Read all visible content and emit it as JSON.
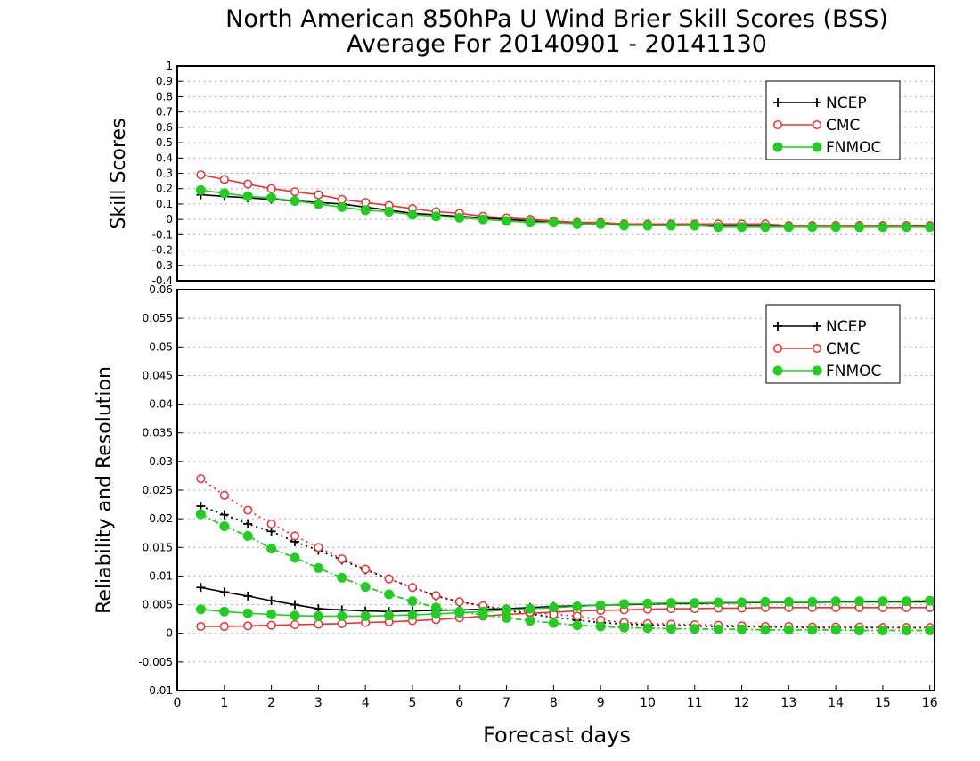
{
  "chart_data": [
    {
      "type": "line",
      "title": "North American 850hPa U Wind Brier Skill Scores (BSS)",
      "subtitle": "Average For 20140901 - 20141130",
      "xlabel": "",
      "ylabel": "Skill Scores",
      "xlim": [
        0,
        16.1
      ],
      "ylim": [
        -0.4,
        1
      ],
      "yticks": [
        "-0.4",
        "-0.3",
        "-0.2",
        "-0.1",
        "0",
        "0.1",
        "0.2",
        "0.3",
        "0.4",
        "0.5",
        "0.6",
        "0.7",
        "0.8",
        "0.9",
        "1"
      ],
      "grid": true,
      "legend": "top-right",
      "x": [
        0.5,
        1,
        1.5,
        2,
        2.5,
        3,
        3.5,
        4,
        4.5,
        5,
        5.5,
        6,
        6.5,
        7,
        7.5,
        8,
        8.5,
        9,
        9.5,
        10,
        10.5,
        11,
        11.5,
        12,
        12.5,
        13,
        13.5,
        14,
        14.5,
        15,
        15.5,
        16
      ],
      "series": [
        {
          "name": "NCEP",
          "color": "#000000",
          "marker": "plus",
          "dash": "solid",
          "values": [
            0.16,
            0.15,
            0.14,
            0.13,
            0.12,
            0.11,
            0.1,
            0.08,
            0.06,
            0.04,
            0.03,
            0.02,
            0.01,
            0.0,
            -0.01,
            -0.02,
            -0.02,
            -0.03,
            -0.03,
            -0.04,
            -0.04,
            -0.04,
            -0.04,
            -0.04,
            -0.04,
            -0.04,
            -0.04,
            -0.04,
            -0.04,
            -0.04,
            -0.04,
            -0.05
          ]
        },
        {
          "name": "CMC",
          "color": "#ee3333",
          "marker": "open-circle",
          "dash": "solid",
          "values": [
            0.29,
            0.26,
            0.23,
            0.2,
            0.18,
            0.16,
            0.13,
            0.11,
            0.09,
            0.07,
            0.05,
            0.04,
            0.02,
            0.01,
            0.0,
            -0.01,
            -0.02,
            -0.02,
            -0.03,
            -0.03,
            -0.03,
            -0.03,
            -0.03,
            -0.03,
            -0.03,
            -0.04,
            -0.04,
            -0.04,
            -0.04,
            -0.04,
            -0.04,
            -0.04
          ]
        },
        {
          "name": "FNMOC",
          "color": "#22cc22",
          "marker": "filled-circle",
          "dash": "solid",
          "values": [
            0.19,
            0.17,
            0.15,
            0.14,
            0.12,
            0.1,
            0.08,
            0.06,
            0.05,
            0.03,
            0.02,
            0.01,
            0.0,
            -0.01,
            -0.02,
            -0.02,
            -0.03,
            -0.03,
            -0.04,
            -0.04,
            -0.04,
            -0.04,
            -0.05,
            -0.05,
            -0.05,
            -0.05,
            -0.05,
            -0.05,
            -0.05,
            -0.05,
            -0.05,
            -0.05
          ]
        }
      ]
    },
    {
      "type": "line",
      "title": "",
      "xlabel": "Forecast days",
      "ylabel": "Reliability and Resolution",
      "xlim": [
        0,
        16.1
      ],
      "ylim": [
        -0.01,
        0.06
      ],
      "xticks": [
        "0",
        "1",
        "2",
        "3",
        "4",
        "5",
        "6",
        "7",
        "8",
        "9",
        "10",
        "11",
        "12",
        "13",
        "14",
        "15",
        "16"
      ],
      "yticks": [
        "-0.01",
        "-0.005",
        "0",
        "0.005",
        "0.01",
        "0.015",
        "0.02",
        "0.025",
        "0.03",
        "0.035",
        "0.04",
        "0.045",
        "0.05",
        "0.055",
        "0.06"
      ],
      "grid": true,
      "legend": "top-right",
      "x": [
        0.5,
        1,
        1.5,
        2,
        2.5,
        3,
        3.5,
        4,
        4.5,
        5,
        5.5,
        6,
        6.5,
        7,
        7.5,
        8,
        8.5,
        9,
        9.5,
        10,
        10.5,
        11,
        11.5,
        12,
        12.5,
        13,
        13.5,
        14,
        14.5,
        15,
        15.5,
        16
      ],
      "series": [
        {
          "name": "NCEP",
          "color": "#000000",
          "marker": "plus",
          "dash": "solid",
          "values": [
            0.008,
            0.0072,
            0.0065,
            0.0057,
            0.005,
            0.0043,
            0.0041,
            0.0039,
            0.0038,
            0.0039,
            0.004,
            0.0041,
            0.0042,
            0.0043,
            0.0045,
            0.0047,
            0.0048,
            0.0049,
            0.005,
            0.0051,
            0.0052,
            0.0052,
            0.0053,
            0.0053,
            0.0054,
            0.0054,
            0.0054,
            0.0055,
            0.0055,
            0.0055,
            0.0055,
            0.0055
          ]
        },
        {
          "legend": false,
          "color": "#000000",
          "marker": "plus",
          "dash": "dotted",
          "values": [
            0.0222,
            0.0207,
            0.0191,
            0.0178,
            0.016,
            0.0145,
            0.0128,
            0.0111,
            0.0095,
            0.008,
            0.0065,
            0.0055,
            0.0048,
            0.004,
            0.0034,
            0.0028,
            0.0023,
            0.0019,
            0.0016,
            0.0015,
            0.0014,
            0.0013,
            0.0012,
            0.0012,
            0.0011,
            0.0011,
            0.001,
            0.001,
            0.001,
            0.001,
            0.001,
            0.001
          ]
        },
        {
          "name": "CMC",
          "color": "#ee3333",
          "marker": "open-circle",
          "dash": "solid",
          "values": [
            0.0012,
            0.0012,
            0.0013,
            0.0014,
            0.0015,
            0.0016,
            0.0017,
            0.0019,
            0.002,
            0.0022,
            0.0024,
            0.0027,
            0.003,
            0.0033,
            0.0035,
            0.0037,
            0.0039,
            0.004,
            0.0041,
            0.0042,
            0.0043,
            0.0043,
            0.0044,
            0.0044,
            0.0045,
            0.0045,
            0.0045,
            0.0045,
            0.0045,
            0.0045,
            0.0045,
            0.0045
          ]
        },
        {
          "legend": false,
          "color": "#ee3333",
          "marker": "open-circle",
          "dash": "dotted",
          "values": [
            0.027,
            0.0241,
            0.0215,
            0.0191,
            0.017,
            0.015,
            0.013,
            0.0112,
            0.0095,
            0.008,
            0.0066,
            0.0055,
            0.0048,
            0.0042,
            0.0037,
            0.0033,
            0.003,
            0.0023,
            0.0019,
            0.0017,
            0.0016,
            0.0015,
            0.0014,
            0.0013,
            0.0012,
            0.0012,
            0.0011,
            0.0011,
            0.0011,
            0.001,
            0.001,
            0.001
          ]
        },
        {
          "name": "FNMOC",
          "color": "#22cc22",
          "marker": "filled-circle",
          "dash": "solid",
          "values": [
            0.0042,
            0.0038,
            0.0035,
            0.0033,
            0.0031,
            0.003,
            0.003,
            0.003,
            0.0031,
            0.0032,
            0.0034,
            0.0036,
            0.0038,
            0.0041,
            0.0043,
            0.0045,
            0.0047,
            0.0049,
            0.0051,
            0.0052,
            0.0053,
            0.0053,
            0.0054,
            0.0054,
            0.0055,
            0.0055,
            0.0055,
            0.0056,
            0.0056,
            0.0056,
            0.0056,
            0.0057
          ]
        },
        {
          "legend": false,
          "color": "#22cc22",
          "marker": "filled-circle",
          "dash": "dashdot",
          "values": [
            0.0208,
            0.0187,
            0.017,
            0.0148,
            0.0132,
            0.0114,
            0.0097,
            0.0081,
            0.0068,
            0.0056,
            0.0045,
            0.0038,
            0.0032,
            0.0027,
            0.0022,
            0.0018,
            0.0014,
            0.0012,
            0.001,
            0.0009,
            0.0008,
            0.0008,
            0.0007,
            0.0007,
            0.0006,
            0.0006,
            0.0006,
            0.0006,
            0.0005,
            0.0005,
            0.0005,
            0.0005
          ]
        }
      ]
    }
  ]
}
